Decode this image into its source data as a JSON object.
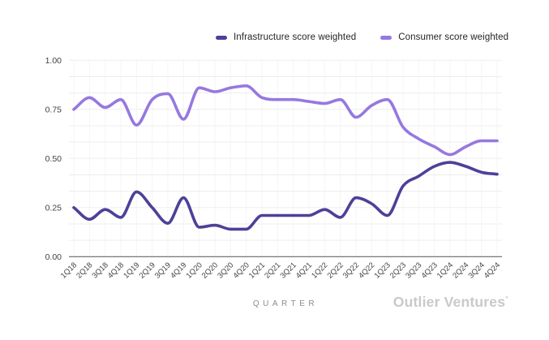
{
  "legend": [
    {
      "label": "Infrastructure score weighted",
      "color": "#4c4199"
    },
    {
      "label": "Consumer score weighted",
      "color": "#9678e0"
    }
  ],
  "footer": {
    "xlabel": "QUARTER",
    "brand": "Outlier Ventures",
    "brand_mark": "°"
  },
  "chart_data": {
    "type": "line",
    "title": "",
    "xlabel": "QUARTER",
    "ylabel": "",
    "ylim": [
      0,
      1
    ],
    "ytick_labels": [
      "0.00",
      "0.25",
      "0.50",
      "0.75",
      "1.00"
    ],
    "grid": true,
    "legend_position": "top",
    "categories": [
      "1Q18",
      "2Q18",
      "3Q18",
      "4Q18",
      "1Q19",
      "2Q19",
      "3Q19",
      "4Q19",
      "1Q20",
      "2Q20",
      "3Q20",
      "4Q20",
      "1Q21",
      "2Q21",
      "3Q21",
      "4Q21",
      "1Q22",
      "2Q22",
      "3Q22",
      "4Q22",
      "1Q23",
      "2Q23",
      "3Q23",
      "4Q23",
      "1Q24",
      "2Q24",
      "3Q24",
      "4Q24"
    ],
    "series": [
      {
        "name": "Infrastructure score weighted",
        "color": "#4c4199",
        "values": [
          0.25,
          0.19,
          0.24,
          0.2,
          0.33,
          0.25,
          0.17,
          0.3,
          0.15,
          0.16,
          0.14,
          0.14,
          0.21,
          0.21,
          0.21,
          0.21,
          0.24,
          0.2,
          0.3,
          0.27,
          0.21,
          0.36,
          0.41,
          0.46,
          0.48,
          0.46,
          0.43,
          0.42
        ]
      },
      {
        "name": "Consumer score weighted",
        "color": "#9678e0",
        "values": [
          0.75,
          0.81,
          0.76,
          0.8,
          0.67,
          0.8,
          0.83,
          0.7,
          0.86,
          0.84,
          0.86,
          0.87,
          0.81,
          0.8,
          0.8,
          0.79,
          0.78,
          0.8,
          0.71,
          0.77,
          0.8,
          0.66,
          0.6,
          0.56,
          0.52,
          0.56,
          0.59,
          0.59
        ]
      }
    ]
  }
}
